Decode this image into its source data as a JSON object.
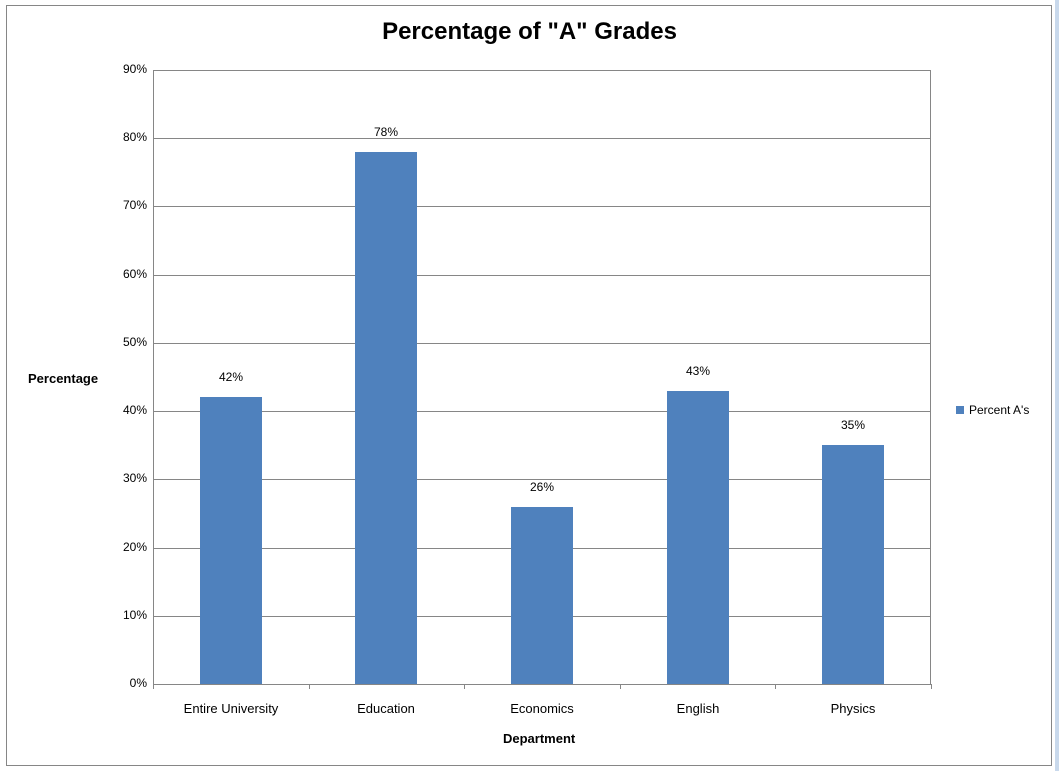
{
  "chart_data": {
    "type": "bar",
    "title": "Percentage of \"A\" Grades",
    "xlabel": "Department",
    "ylabel": "Percentage",
    "categories": [
      "Entire University",
      "Education",
      "Economics",
      "English",
      "Physics"
    ],
    "series": [
      {
        "name": "Percent A's",
        "values": [
          42,
          78,
          26,
          43,
          35
        ],
        "color": "#4F81BD"
      }
    ],
    "data_labels": [
      "42%",
      "78%",
      "26%",
      "43%",
      "35%"
    ],
    "ylim": [
      0,
      90
    ],
    "yticks": [
      "0%",
      "10%",
      "20%",
      "30%",
      "40%",
      "50%",
      "60%",
      "70%",
      "80%",
      "90%"
    ],
    "grid": true,
    "legend_position": "right"
  },
  "title": "Percentage of \"A\" Grades",
  "ylabel": "Percentage",
  "xlabel": "Department",
  "legend": {
    "label": "Percent A's"
  },
  "yticks": [
    "0%",
    "10%",
    "20%",
    "30%",
    "40%",
    "50%",
    "60%",
    "70%",
    "80%",
    "90%"
  ],
  "categories": [
    "Entire University",
    "Education",
    "Economics",
    "English",
    "Physics"
  ],
  "data_labels": [
    "42%",
    "78%",
    "26%",
    "43%",
    "35%"
  ],
  "colors": {
    "bar": "#4F81BD",
    "grid": "#868686"
  }
}
